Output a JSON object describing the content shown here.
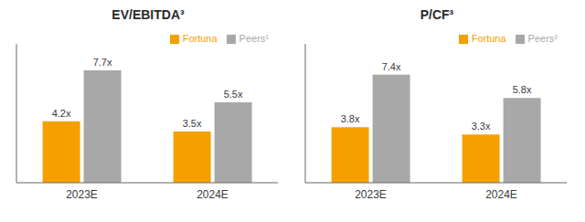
{
  "chart_data": [
    {
      "type": "bar",
      "title": "EV/EBITDA³",
      "categories": [
        "2023E",
        "2024E"
      ],
      "series": [
        {
          "name": "Fortuna",
          "color": "#F5A000",
          "values": [
            4.2,
            3.5
          ],
          "value_labels": [
            "4.2x",
            "3.5x"
          ]
        },
        {
          "name": "Peers¹",
          "color": "#A8A8A8",
          "values": [
            7.7,
            5.5
          ],
          "value_labels": [
            "7.7x",
            "5.5x"
          ]
        }
      ],
      "ylim": [
        0,
        9.5
      ],
      "tick_labels": "x",
      "data_labels": true,
      "grid": false,
      "legend": "upper right"
    },
    {
      "type": "bar",
      "title": "P/CF³",
      "categories": [
        "2023E",
        "2024E"
      ],
      "series": [
        {
          "name": "Fortuna",
          "color": "#F5A000",
          "values": [
            3.8,
            3.3
          ],
          "value_labels": [
            "3.8x",
            "3.3x"
          ]
        },
        {
          "name": "Peers²",
          "color": "#A8A8A8",
          "values": [
            7.4,
            5.8
          ],
          "value_labels": [
            "7.4x",
            "5.8x"
          ]
        }
      ],
      "ylim": [
        0,
        9.5
      ],
      "tick_labels": "x",
      "data_labels": true,
      "grid": false,
      "legend": "upper right"
    }
  ]
}
